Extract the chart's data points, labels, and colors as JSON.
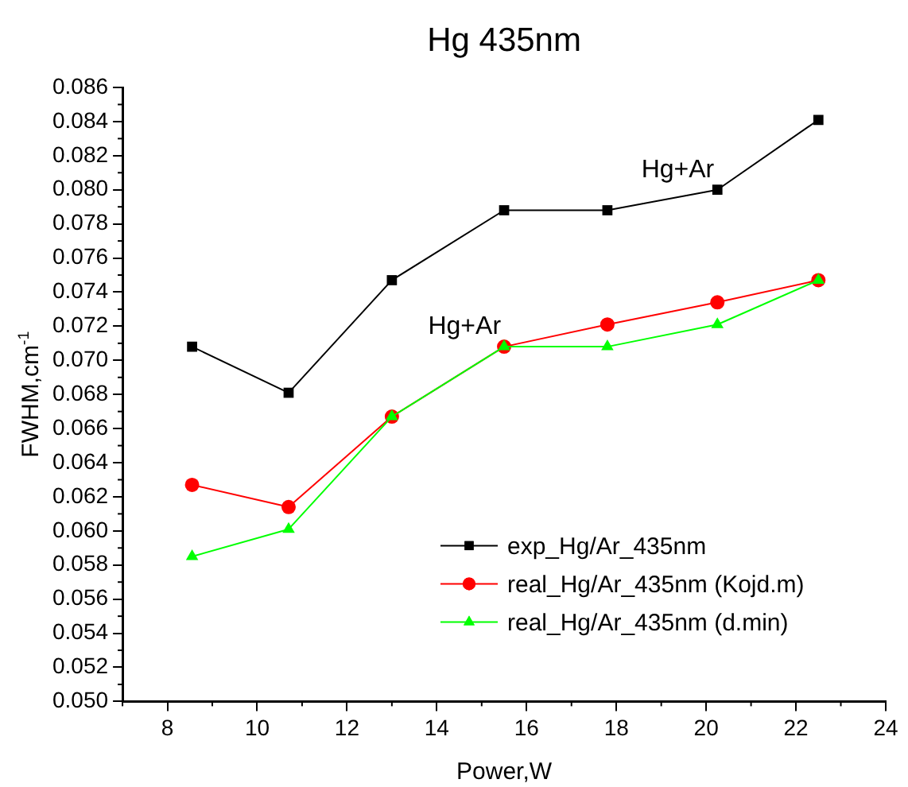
{
  "chart_data": {
    "type": "line",
    "title": "Hg 435nm",
    "xlabel": "Power,W",
    "ylabel": "FWHM,cm$^{-1}$",
    "x": [
      8.55,
      10.7,
      13.0,
      15.5,
      17.8,
      20.25,
      22.5
    ],
    "series": [
      {
        "name": "exp_Hg/Ar_435nm",
        "color": "#000000",
        "marker": "square",
        "values": [
          0.0708,
          0.0681,
          0.0747,
          0.0788,
          0.0788,
          0.08,
          0.0841
        ]
      },
      {
        "name": "real_Hg/Ar_435nm (Kojd.m)",
        "color": "#ff0000",
        "marker": "circle",
        "values": [
          0.0627,
          0.0614,
          0.0667,
          0.0708,
          0.0721,
          0.0734,
          0.0747
        ]
      },
      {
        "name": "real_Hg/Ar_435nm (d.min)",
        "color": "#00ff00",
        "marker": "triangle",
        "values": [
          0.0585,
          0.0601,
          0.0667,
          0.0708,
          0.0708,
          0.0721,
          0.0747
        ]
      }
    ],
    "xlim": [
      7,
      24
    ],
    "xticks": [
      8,
      10,
      12,
      14,
      16,
      18,
      20,
      22,
      24
    ],
    "ylim": [
      0.05,
      0.086
    ],
    "yticks": [
      {
        "value": 0.05,
        "label": "0.050"
      },
      {
        "value": 0.052,
        "label": "0.052"
      },
      {
        "value": 0.054,
        "label": "0.054"
      },
      {
        "value": 0.056,
        "label": "0.056"
      },
      {
        "value": 0.058,
        "label": "0.058"
      },
      {
        "value": 0.06,
        "label": "0.060"
      },
      {
        "value": 0.062,
        "label": "0.062"
      },
      {
        "value": 0.064,
        "label": "0.064"
      },
      {
        "value": 0.066,
        "label": "0.066"
      },
      {
        "value": 0.068,
        "label": "0.068"
      },
      {
        "value": 0.07,
        "label": "0.070"
      },
      {
        "value": 0.072,
        "label": "0.072"
      },
      {
        "value": 0.074,
        "label": "0.074"
      },
      {
        "value": 0.076,
        "label": "0.076"
      },
      {
        "value": 0.078,
        "label": "0.078"
      },
      {
        "value": 0.08,
        "label": "0.080"
      },
      {
        "value": 0.082,
        "label": "0.082"
      },
      {
        "value": 0.084,
        "label": "0.084"
      },
      {
        "value": 0.086,
        "label": "0.086"
      }
    ],
    "annotations": [
      {
        "text": "Hg+Ar",
        "x": 20.25,
        "y": 0.08
      },
      {
        "text": "Hg+Ar",
        "x": 15.5,
        "y": 0.0708
      }
    ],
    "grid": false,
    "legend": "bottom right",
    "line_style": "solid"
  }
}
